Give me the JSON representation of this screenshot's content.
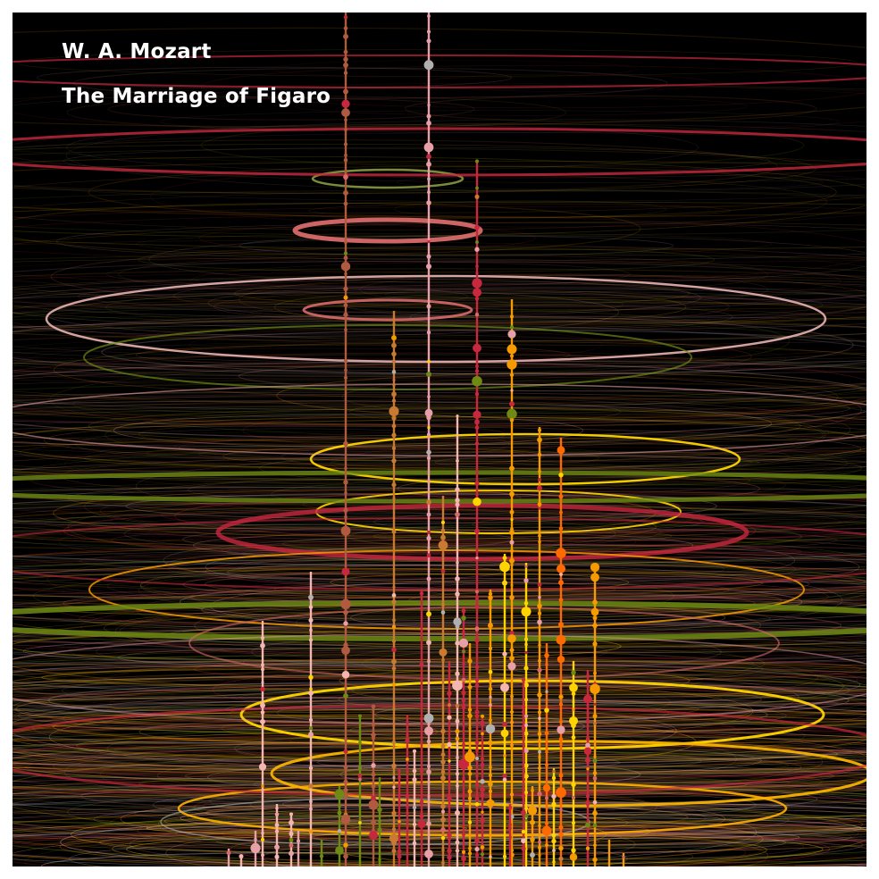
{
  "artwork": {
    "composer": "W. A. Mozart",
    "title": "The Marriage of Figaro",
    "background_color": "#000000",
    "border_color": "#ffffff",
    "palette": [
      "#c8283e",
      "#e8a0a8",
      "#f4b6b0",
      "#d86a6a",
      "#ffd400",
      "#f59a00",
      "#6e8a14",
      "#c87a32",
      "#b0b0b0"
    ]
  }
}
